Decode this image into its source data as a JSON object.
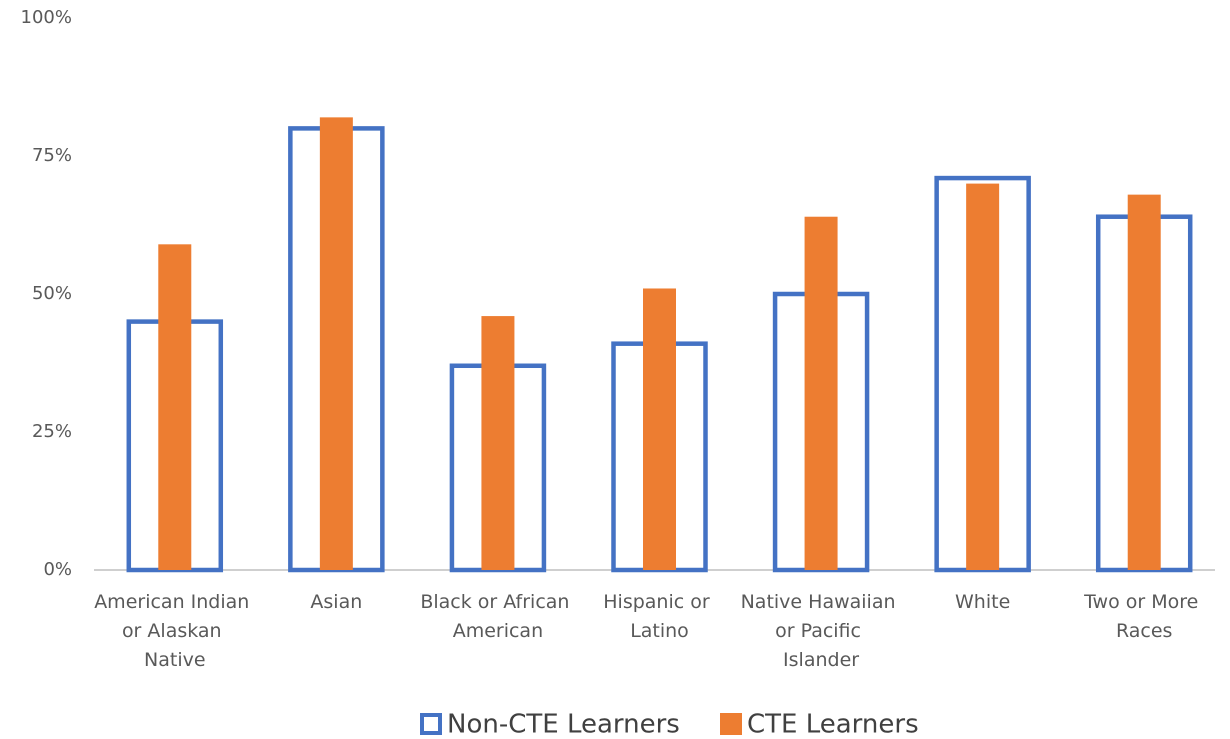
{
  "chart_data": {
    "type": "bar",
    "categories": [
      "American Indian or Alaskan Native",
      "Asian",
      "Black or African American",
      "Hispanic or Latino",
      "Native Hawaiian or Pacific Islander",
      "White",
      "Two or More Races"
    ],
    "series": [
      {
        "name": "Non-CTE Learners",
        "color": "#4472c4",
        "values": [
          45,
          80,
          37,
          41,
          50,
          71,
          64
        ]
      },
      {
        "name": "CTE Learners",
        "color": "#ed7d31",
        "values": [
          59,
          82,
          46,
          51,
          64,
          70,
          68
        ]
      }
    ],
    "ylim": [
      0,
      100
    ],
    "yticks": [
      {
        "value": 0,
        "label": "0%"
      },
      {
        "value": 25,
        "label": "25%"
      },
      {
        "value": 50,
        "label": "50%"
      },
      {
        "value": 75,
        "label": "75%"
      },
      {
        "value": 100,
        "label": "100%"
      }
    ],
    "legend": "bottom"
  }
}
